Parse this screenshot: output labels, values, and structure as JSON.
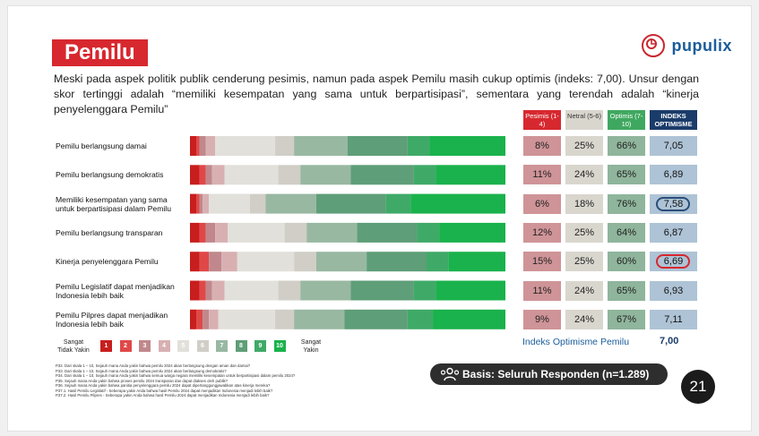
{
  "slide": {
    "title": "Pemilu",
    "brand": "pupulix",
    "intro": "Meski pada aspek politik publik cenderung pesimis, namun pada aspek Pemilu masih cukup optimis (indeks: 7,00). Unsur dengan skor tertinggi adalah “memiliki kesempatan yang sama untuk berpartisipasi”, sementara yang terendah adalah “kinerja penyelenggara Pemilu”",
    "table_headers": {
      "pesimis": "Pesimis (1-4)",
      "netral": "Netral (5-6)",
      "optimis": "Optimis (7-10)",
      "indeks": "INDEKS OPTIMISME"
    },
    "rows": [
      {
        "label": "Pemilu berlangsung damai",
        "pesimis": "8%",
        "netral": "25%",
        "optimis": "66%",
        "indeks": "7,05",
        "highlight": ""
      },
      {
        "label": "Pemilu berlangsung demokratis",
        "pesimis": "11%",
        "netral": "24%",
        "optimis": "65%",
        "indeks": "6,89",
        "highlight": ""
      },
      {
        "label": "Memiliki kesempatan yang sama untuk berpartisipasi dalam Pemilu",
        "pesimis": "6%",
        "netral": "18%",
        "optimis": "76%",
        "indeks": "7,58",
        "highlight": "highest"
      },
      {
        "label": "Pemilu berlangsung transparan",
        "pesimis": "12%",
        "netral": "25%",
        "optimis": "64%",
        "indeks": "6,87",
        "highlight": ""
      },
      {
        "label": "Kinerja penyelenggara Pemilu",
        "pesimis": "15%",
        "netral": "25%",
        "optimis": "60%",
        "indeks": "6,69",
        "highlight": "lowest"
      },
      {
        "label": "Pemilu Legislatif dapat menjadikan Indonesia lebih baik",
        "pesimis": "11%",
        "netral": "24%",
        "optimis": "65%",
        "indeks": "6,93",
        "highlight": ""
      },
      {
        "label": "Pemilu Pilpres dapat menjadikan Indonesia lebih baik",
        "pesimis": "9%",
        "netral": "24%",
        "optimis": "67%",
        "indeks": "7,11",
        "highlight": ""
      }
    ],
    "legend": {
      "left_label": "Sangat Tidak Yakin",
      "right_label": "Sangat Yakin",
      "scale": [
        "1",
        "2",
        "3",
        "4",
        "5",
        "6",
        "7",
        "8",
        "9",
        "10"
      ]
    },
    "index_summary": {
      "label": "Indeks Optimisme Pemilu",
      "value": "7,00"
    },
    "basis": "Basis: Seluruh Responden (n=1.289)",
    "page_number": "21",
    "footnotes": [
      "P32. Dari skala 1 – 10, Sejauh mana Anda yakin bahwa pemilu 2024 akan berlangsung dengan aman dan damai?",
      "P33. Dari skala 1 – 10, Sejauh mana Anda yakin bahwa pemilu 2024 akan berlangsung demokratis?",
      "P34. Dari skala 1 – 10, Sejauh mana Anda yakin bahwa semua warga negara memiliki kesempatan untuk berpartisipasi dalam pemilu 2024?",
      "P35. Sejauh mana Anda yakin bahwa proses pemilu 2024 transparan dan dapat diakses oleh publik?",
      "P36. Sejauh mana Anda yakin bahwa panitia penyelenggara pemilu 2024 dapat dipertanggungjawabkan atas kinerja mereka?",
      "P37.1. Hasil Pemilu Legislatif - Seberapa yakin Anda bahwa hasil Pemilu 2024 dapat menjadikan Indonesia menjadi lebih baik?",
      "P37.2. Hasil Pemilu Pilpres - Seberapa yakin Anda bahwa hasil Pemilu 2024 dapat menjadikan Indonesia menjadi lebih baik?"
    ],
    "colors": {
      "red": "#d7282f",
      "pesimis_bg": "#cf9498",
      "netral_bg": "#d9d6ce",
      "optimis_bg": "#8fb59c",
      "index_bg": "#aec3d5",
      "navy": "#1a3c6a",
      "ring_high": "#2a4e78",
      "ring_low": "#d7282f"
    }
  },
  "chart_data": {
    "type": "bar",
    "stacked": true,
    "orientation": "horizontal",
    "categories": [
      "Pemilu berlangsung damai",
      "Pemilu berlangsung demokratis",
      "Memiliki kesempatan yang sama untuk berpartisipasi dalam Pemilu",
      "Pemilu berlangsung transparan",
      "Kinerja penyelenggara Pemilu",
      "Pemilu Legislatif dapat menjadikan Indonesia lebih baik",
      "Pemilu Pilpres dapat menjadikan Indonesia lebih baik"
    ],
    "series": [
      {
        "name": "1",
        "color": "#c81e1e",
        "values": [
          2,
          3,
          2,
          3,
          3,
          3,
          2
        ]
      },
      {
        "name": "2",
        "color": "#e04848",
        "values": [
          1,
          2,
          1,
          2,
          3,
          2,
          2
        ]
      },
      {
        "name": "3",
        "color": "#c0888c",
        "values": [
          2,
          2,
          1,
          3,
          4,
          2,
          2
        ]
      },
      {
        "name": "4",
        "color": "#d8b0b2",
        "values": [
          3,
          4,
          2,
          4,
          5,
          4,
          3
        ]
      },
      {
        "name": "5",
        "color": "#e2e0da",
        "values": [
          19,
          17,
          13,
          18,
          18,
          17,
          18
        ]
      },
      {
        "name": "6",
        "color": "#d0cec6",
        "values": [
          6,
          7,
          5,
          7,
          7,
          7,
          6
        ]
      },
      {
        "name": "7",
        "color": "#98b8a2",
        "values": [
          17,
          16,
          16,
          16,
          16,
          16,
          16
        ]
      },
      {
        "name": "8",
        "color": "#5e9e78",
        "values": [
          19,
          20,
          22,
          19,
          19,
          20,
          20
        ]
      },
      {
        "name": "9",
        "color": "#3faa68",
        "values": [
          7,
          7,
          8,
          7,
          7,
          7,
          8
        ]
      },
      {
        "name": "10",
        "color": "#1ab24c",
        "values": [
          24,
          22,
          30,
          21,
          18,
          22,
          23
        ]
      }
    ],
    "summary_columns": {
      "pesimis": [
        8,
        11,
        6,
        12,
        15,
        11,
        9
      ],
      "netral": [
        25,
        24,
        18,
        25,
        25,
        24,
        24
      ],
      "optimis": [
        66,
        65,
        76,
        64,
        60,
        65,
        67
      ],
      "indeks": [
        7.05,
        6.89,
        7.58,
        6.87,
        6.69,
        6.93,
        7.11
      ]
    },
    "xlim": [
      0,
      100
    ]
  }
}
